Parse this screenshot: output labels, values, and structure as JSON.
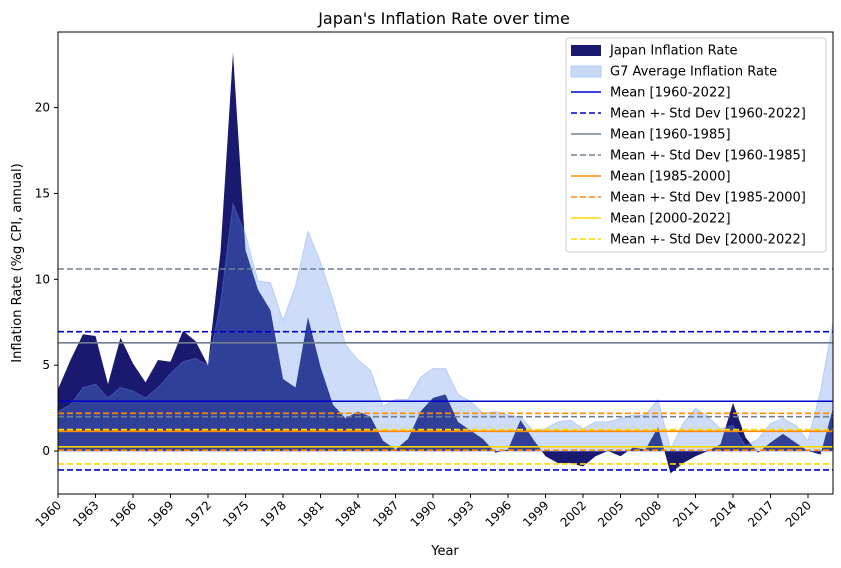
{
  "chart_data": {
    "type": "area",
    "title": "Japan's Inflation Rate over time",
    "xlabel": "Year",
    "ylabel": "Inflation Rate (%g CPI, annual)",
    "xlim": [
      1960,
      2022
    ],
    "ylim": [
      -2.5,
      24.4
    ],
    "x_ticks": [
      1960,
      1963,
      1966,
      1969,
      1972,
      1975,
      1978,
      1981,
      1984,
      1987,
      1990,
      1993,
      1996,
      1999,
      2002,
      2005,
      2008,
      2011,
      2014,
      2017,
      2020
    ],
    "y_ticks": [
      0,
      5,
      10,
      15,
      20
    ],
    "grid": false,
    "legend_position": "top-right",
    "x": [
      1960,
      1961,
      1962,
      1963,
      1964,
      1965,
      1966,
      1967,
      1968,
      1969,
      1970,
      1971,
      1972,
      1973,
      1974,
      1975,
      1976,
      1977,
      1978,
      1979,
      1980,
      1981,
      1982,
      1983,
      1984,
      1985,
      1986,
      1987,
      1988,
      1989,
      1990,
      1991,
      1992,
      1993,
      1994,
      1995,
      1996,
      1997,
      1998,
      1999,
      2000,
      2001,
      2002,
      2003,
      2004,
      2005,
      2006,
      2007,
      2008,
      2009,
      2010,
      2011,
      2012,
      2013,
      2014,
      2015,
      2016,
      2017,
      2018,
      2019,
      2020,
      2021,
      2022
    ],
    "series": [
      {
        "name": "Japan Inflation Rate",
        "color": "#191970",
        "values": [
          3.6,
          5.3,
          6.8,
          6.7,
          3.9,
          6.6,
          5.1,
          4.0,
          5.3,
          5.2,
          7.0,
          6.4,
          5.0,
          11.6,
          23.2,
          11.7,
          9.4,
          8.2,
          4.2,
          3.7,
          7.8,
          4.9,
          2.7,
          1.9,
          2.3,
          2.0,
          0.6,
          0.1,
          0.7,
          2.3,
          3.1,
          3.3,
          1.7,
          1.2,
          0.7,
          -0.1,
          0.1,
          1.8,
          0.7,
          -0.3,
          -0.7,
          -0.7,
          -0.9,
          -0.3,
          0.0,
          -0.3,
          0.2,
          0.1,
          1.4,
          -1.3,
          -0.7,
          -0.3,
          0.0,
          0.4,
          2.8,
          0.8,
          -0.1,
          0.5,
          1.0,
          0.5,
          0.0,
          -0.2,
          2.5
        ]
      },
      {
        "name": "G7 Average Inflation Rate",
        "color": "#c6d9f7",
        "values": [
          2.3,
          2.7,
          3.7,
          3.9,
          3.1,
          3.7,
          3.5,
          3.1,
          3.7,
          4.5,
          5.2,
          5.4,
          5.0,
          8.6,
          14.4,
          12.6,
          9.9,
          9.8,
          7.6,
          9.6,
          12.8,
          11.0,
          8.8,
          6.2,
          5.3,
          4.7,
          2.6,
          3.0,
          3.0,
          4.3,
          4.8,
          4.8,
          3.3,
          2.9,
          2.2,
          2.3,
          2.1,
          2.0,
          1.2,
          1.3,
          1.7,
          1.8,
          1.3,
          1.7,
          1.7,
          1.9,
          2.1,
          2.1,
          3.0,
          0.1,
          1.6,
          2.5,
          2.0,
          1.3,
          1.5,
          0.3,
          0.7,
          1.6,
          1.9,
          1.5,
          0.6,
          3.5,
          7.5
        ]
      }
    ],
    "lines": [
      {
        "label": "Mean [1960-2022]",
        "value": 2.9,
        "color": "#0000cd",
        "style": "solid"
      },
      {
        "label": "Mean +- Std Dev [1960-2022]",
        "values": [
          6.95,
          -1.1
        ],
        "color": "#0000cd",
        "style": "dashed"
      },
      {
        "label": "Mean [1960-1985]",
        "value": 6.3,
        "color": "#708090",
        "style": "solid"
      },
      {
        "label": "Mean +- Std Dev [1960-1985]",
        "values": [
          10.6,
          2.0
        ],
        "color": "#708090",
        "style": "dashed"
      },
      {
        "label": "Mean [1985-2000]",
        "value": 1.15,
        "color": "#ff8c00",
        "style": "solid"
      },
      {
        "label": "Mean +- Std Dev [1985-2000]",
        "values": [
          2.2,
          0.05
        ],
        "color": "#ff8c00",
        "style": "dashed"
      },
      {
        "label": "Mean [2000-2022]",
        "value": 0.25,
        "color": "#ffd700",
        "style": "solid"
      },
      {
        "label": "Mean +- Std Dev [2000-2022]",
        "values": [
          1.25,
          -0.75
        ],
        "color": "#ffd700",
        "style": "dashed"
      }
    ]
  }
}
